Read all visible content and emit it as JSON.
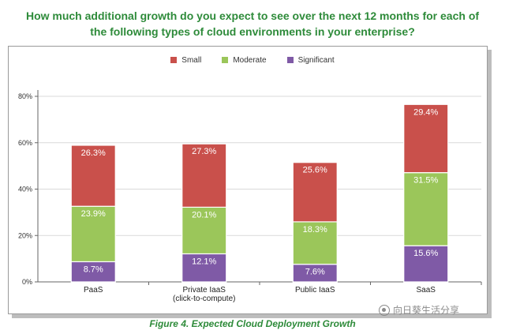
{
  "title_lines": [
    "How much additional growth do you expect to see over the next 12 months for each of",
    "the following types of cloud environments in your enterprise?"
  ],
  "caption": "Figure 4. Expected Cloud Deployment Growth",
  "watermark": "向日葵生活分享",
  "colors": {
    "small": "#c9504b",
    "moderate": "#9bc65a",
    "significant": "#7f5aa6",
    "title": "#2e8b3a"
  },
  "chart_data": {
    "type": "bar",
    "stacked": true,
    "title": "How much additional growth do you expect to see over the next 12 months for each of the following types of cloud environments in your enterprise?",
    "xlabel": "",
    "ylabel": "",
    "ylim": [
      0,
      80
    ],
    "yticks": [
      "0%",
      "20%",
      "40%",
      "60%",
      "80%"
    ],
    "categories": [
      [
        "PaaS"
      ],
      [
        "Private IaaS",
        "(click-to-compute)"
      ],
      [
        "Public IaaS"
      ],
      [
        "SaaS"
      ]
    ],
    "legend_position": "top",
    "series": [
      {
        "name": "Small",
        "color_key": "small",
        "values": [
          26.3,
          27.3,
          25.6,
          29.4
        ],
        "labels": [
          "26.3%",
          "27.3%",
          "25.6%",
          "29.4%"
        ]
      },
      {
        "name": "Moderate",
        "color_key": "moderate",
        "values": [
          23.9,
          20.1,
          18.3,
          31.5
        ],
        "labels": [
          "23.9%",
          "20.1%",
          "18.3%",
          "31.5%"
        ]
      },
      {
        "name": "Significant",
        "color_key": "significant",
        "values": [
          8.7,
          12.1,
          7.6,
          15.6
        ],
        "labels": [
          "8.7%",
          "12.1%",
          "7.6%",
          "15.6%"
        ]
      }
    ],
    "stack_order_bottom_to_top": [
      "Significant",
      "Moderate",
      "Small"
    ],
    "grid": true
  }
}
